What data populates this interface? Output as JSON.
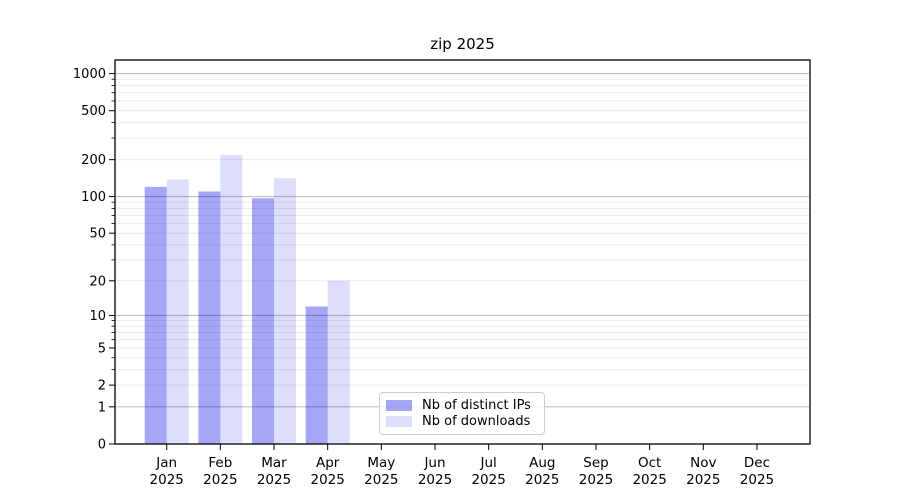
{
  "figure": {
    "title": "zip 2025"
  },
  "legend": {
    "items": [
      {
        "label": "Nb of distinct IPs",
        "color": "rgba(0,0,230,0.35)"
      },
      {
        "label": "Nb of downloads",
        "color": "rgba(0,0,230,0.135)"
      }
    ]
  },
  "axes": {
    "yticks_display": [
      "1000",
      "500",
      "200",
      "100",
      "50",
      "20",
      "10",
      "5",
      "2",
      "1",
      "0"
    ],
    "xticks": [
      {
        "month": "Jan",
        "year": "2025"
      },
      {
        "month": "Feb",
        "year": "2025"
      },
      {
        "month": "Mar",
        "year": "2025"
      },
      {
        "month": "Apr",
        "year": "2025"
      },
      {
        "month": "May",
        "year": "2025"
      },
      {
        "month": "Jun",
        "year": "2025"
      },
      {
        "month": "Jul",
        "year": "2025"
      },
      {
        "month": "Aug",
        "year": "2025"
      },
      {
        "month": "Sep",
        "year": "2025"
      },
      {
        "month": "Oct",
        "year": "2025"
      },
      {
        "month": "Nov",
        "year": "2025"
      },
      {
        "month": "Dec",
        "year": "2025"
      }
    ]
  },
  "chart_data": {
    "type": "bar",
    "title": "zip 2025",
    "categories": [
      "Jan 2025",
      "Feb 2025",
      "Mar 2025",
      "Apr 2025",
      "May 2025",
      "Jun 2025",
      "Jul 2025",
      "Aug 2025",
      "Sep 2025",
      "Oct 2025",
      "Nov 2025",
      "Dec 2025"
    ],
    "series": [
      {
        "name": "Nb of distinct IPs",
        "color": "rgba(0,0,230,0.35)",
        "values": [
          120,
          110,
          97,
          12,
          0,
          0,
          0,
          0,
          0,
          0,
          0,
          0
        ]
      },
      {
        "name": "Nb of downloads",
        "color": "rgba(0,0,230,0.135)",
        "values": [
          138,
          218,
          141,
          20,
          0,
          0,
          0,
          0,
          0,
          0,
          0,
          0
        ]
      }
    ],
    "yscale": "log1p",
    "yticks": [
      0,
      1,
      2,
      5,
      10,
      20,
      50,
      100,
      200,
      500,
      1000
    ],
    "ylim": [
      0,
      1289
    ],
    "xlabel": "",
    "ylabel": "",
    "grid": true,
    "legend_position": "lower center inside axes"
  },
  "colors": {
    "bar_ips_hex": "#a6a6f4",
    "bar_downloads_hex": "#dcdcf9",
    "grid_major": "#c0c0c0",
    "grid_minor": "#ebebeb",
    "axis": "#000000",
    "tick_label": "#000000",
    "legend_border": "#cccccc"
  }
}
